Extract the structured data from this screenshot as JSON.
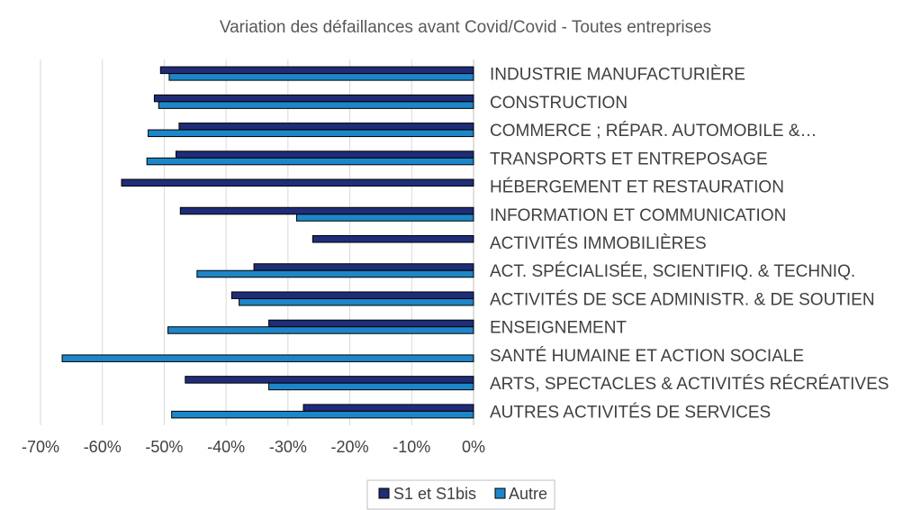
{
  "chart_data": {
    "type": "bar",
    "orientation": "horizontal",
    "title": "Variation des défaillances avant Covid/Covid - Toutes entreprises",
    "xlabel": "",
    "ylabel": "",
    "xlim": [
      -70,
      0
    ],
    "xticks": [
      -70,
      -60,
      -50,
      -40,
      -30,
      -20,
      -10,
      0
    ],
    "tick_labels": [
      "-70%",
      "-60%",
      "-50%",
      "-40%",
      "-30%",
      "-20%",
      "-10%",
      "0%"
    ],
    "grid": true,
    "legend_position": "bottom",
    "categories": [
      "INDUSTRIE MANUFACTURIÈRE",
      "CONSTRUCTION",
      "COMMERCE ; RÉPAR. AUTOMOBILE &…",
      "TRANSPORTS ET ENTREPOSAGE",
      "HÉBERGEMENT ET RESTAURATION",
      "INFORMATION ET COMMUNICATION",
      "ACTIVITÉS IMMOBILIÈRES",
      "ACT. SPÉCIALISÉE, SCIENTIFIQ. & TECHNIQ.",
      "ACTIVITÉS DE SCE ADMINISTR. & DE SOUTIEN",
      "ENSEIGNEMENT",
      "SANTÉ HUMAINE ET ACTION SOCIALE",
      "ARTS, SPECTACLES & ACTIVITÉS RÉCRÉATIVES",
      "AUTRES ACTIVITÉS DE SERVICES"
    ],
    "series": [
      {
        "name": "S1 et S1bis",
        "color": "#1f2d78",
        "values": [
          -50.6,
          -51.6,
          -47.6,
          -48.1,
          -56.9,
          -47.4,
          -26.0,
          -35.5,
          -39.1,
          -33.1,
          null,
          -46.6,
          -27.5
        ]
      },
      {
        "name": "Autre",
        "color": "#1d86c8",
        "values": [
          -49.2,
          -50.9,
          -52.6,
          -52.8,
          null,
          -28.6,
          null,
          -44.7,
          -37.9,
          -49.4,
          -66.5,
          -33.1,
          -48.8
        ]
      }
    ]
  }
}
